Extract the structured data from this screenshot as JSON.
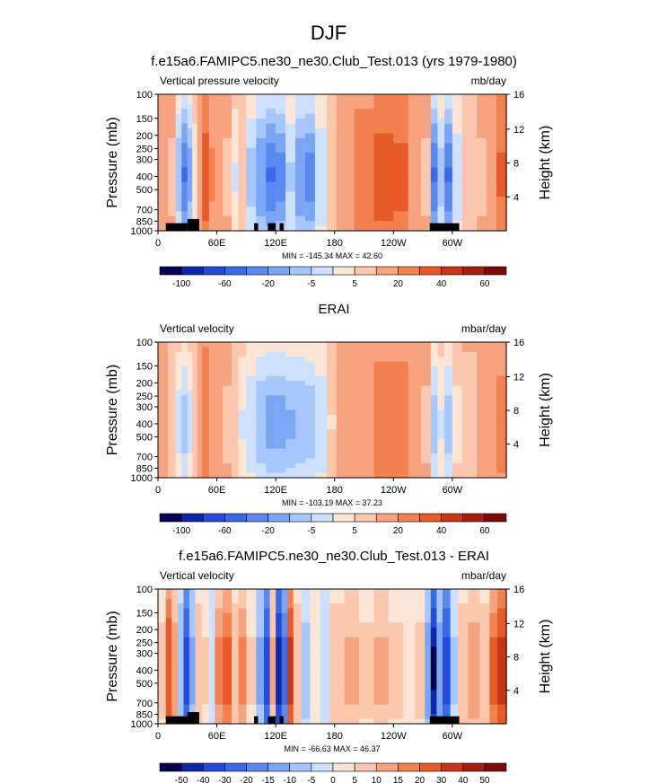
{
  "page": {
    "title": "DJF",
    "colors": {
      "text": "#000000",
      "background": "#ffffff",
      "terrain": "#000000"
    }
  },
  "chart_data": [
    {
      "type": "heatmap",
      "title": "f.e15a6.FAMIPC5.ne30_ne30.Club_Test.013 (yrs 1979-1980)",
      "left_label": "Vertical pressure velocity",
      "units": "mb/day",
      "ylabel": "Pressure (mb)",
      "ylabel_right": "Height (km)",
      "x_ticks": [
        "0",
        "60E",
        "120E",
        "180",
        "120W",
        "60W"
      ],
      "y_ticks": [
        "100",
        "150",
        "200",
        "250",
        "300",
        "400",
        "500",
        "700",
        "850",
        "1000"
      ],
      "height_ticks": [
        "4",
        "8",
        "12",
        "16"
      ],
      "y_log_scale": true,
      "ylim": [
        1000,
        100
      ],
      "xlim": [
        0,
        355
      ],
      "min_max_text": "MIN = -145.34  MAX =  42.60",
      "colorbar_labels": [
        "-100",
        "-60",
        "-20",
        "-5",
        "5",
        "20",
        "40",
        "60"
      ],
      "colorbar_colors": [
        "#05004f",
        "#0e27a6",
        "#2649d8",
        "#3a6ae8",
        "#5a8af0",
        "#7ba6f5",
        "#a6c7fb",
        "#cce0ff",
        "#fde5d6",
        "#fbc8ae",
        "#f7a37f",
        "#f2814f",
        "#e85a2a",
        "#cc3416",
        "#a51d10",
        "#7a0b09"
      ],
      "field": {
        "columns": [
          {
            "lon": 0,
            "v": 0
          },
          {
            "lon": 10,
            "v": -3
          },
          {
            "lon": 18,
            "v": -38
          },
          {
            "lon": 24,
            "v": -60
          },
          {
            "lon": 30,
            "v": -45
          },
          {
            "lon": 35,
            "v": -18
          },
          {
            "lon": 40,
            "v": 6
          },
          {
            "lon": 45,
            "v": 22
          },
          {
            "lon": 52,
            "v": 8
          },
          {
            "lon": 58,
            "v": 1
          },
          {
            "lon": 66,
            "v": -3
          },
          {
            "lon": 75,
            "v": -22
          },
          {
            "lon": 82,
            "v": -8
          },
          {
            "lon": 90,
            "v": -35
          },
          {
            "lon": 100,
            "v": -50
          },
          {
            "lon": 110,
            "v": -60
          },
          {
            "lon": 120,
            "v": -55
          },
          {
            "lon": 130,
            "v": -32
          },
          {
            "lon": 140,
            "v": -50
          },
          {
            "lon": 150,
            "v": -55
          },
          {
            "lon": 160,
            "v": -30
          },
          {
            "lon": 172,
            "v": -6
          },
          {
            "lon": 182,
            "v": 4
          },
          {
            "lon": 200,
            "v": 14
          },
          {
            "lon": 220,
            "v": 22
          },
          {
            "lon": 240,
            "v": 20
          },
          {
            "lon": 255,
            "v": 6
          },
          {
            "lon": 268,
            "v": -3
          },
          {
            "lon": 278,
            "v": -60
          },
          {
            "lon": 285,
            "v": -35
          },
          {
            "lon": 292,
            "v": -60
          },
          {
            "lon": 300,
            "v": -28
          },
          {
            "lon": 310,
            "v": -10
          },
          {
            "lon": 325,
            "v": -3
          },
          {
            "lon": 335,
            "v": 4
          },
          {
            "lon": 345,
            "v": 18
          },
          {
            "lon": 355,
            "v": 10
          }
        ]
      }
    },
    {
      "type": "heatmap",
      "title": "ERAI",
      "left_label": "Vertical velocity",
      "units": "mbar/day",
      "ylabel": "Pressure (mb)",
      "ylabel_right": "Height (km)",
      "x_ticks": [
        "0",
        "60E",
        "120E",
        "180",
        "120W",
        "60W"
      ],
      "y_ticks": [
        "100",
        "150",
        "200",
        "250",
        "300",
        "400",
        "500",
        "700",
        "850",
        "1000"
      ],
      "height_ticks": [
        "4",
        "8",
        "12",
        "16"
      ],
      "y_log_scale": true,
      "ylim": [
        1000,
        100
      ],
      "xlim": [
        0,
        355
      ],
      "min_max_text": "MIN = -103.19  MAX =  37.23",
      "colorbar_labels": [
        "-100",
        "-60",
        "-20",
        "-5",
        "5",
        "20",
        "40",
        "60"
      ],
      "colorbar_colors": [
        "#05004f",
        "#0e27a6",
        "#2649d8",
        "#3a6ae8",
        "#5a8af0",
        "#7ba6f5",
        "#a6c7fb",
        "#cce0ff",
        "#fde5d6",
        "#fbc8ae",
        "#f7a37f",
        "#f2814f",
        "#e85a2a",
        "#cc3416",
        "#a51d10",
        "#7a0b09"
      ],
      "field": {
        "columns": [
          {
            "lon": 0,
            "v": -2
          },
          {
            "lon": 10,
            "v": -8
          },
          {
            "lon": 18,
            "v": -25
          },
          {
            "lon": 24,
            "v": -35
          },
          {
            "lon": 30,
            "v": -25
          },
          {
            "lon": 35,
            "v": -8
          },
          {
            "lon": 40,
            "v": 5
          },
          {
            "lon": 45,
            "v": 16
          },
          {
            "lon": 52,
            "v": 5
          },
          {
            "lon": 58,
            "v": -1
          },
          {
            "lon": 66,
            "v": -3
          },
          {
            "lon": 75,
            "v": -10
          },
          {
            "lon": 82,
            "v": -22
          },
          {
            "lon": 90,
            "v": -30
          },
          {
            "lon": 100,
            "v": -40
          },
          {
            "lon": 110,
            "v": -45
          },
          {
            "lon": 120,
            "v": -45
          },
          {
            "lon": 130,
            "v": -42
          },
          {
            "lon": 140,
            "v": -40
          },
          {
            "lon": 150,
            "v": -38
          },
          {
            "lon": 160,
            "v": -30
          },
          {
            "lon": 172,
            "v": -12
          },
          {
            "lon": 182,
            "v": 3
          },
          {
            "lon": 200,
            "v": 6
          },
          {
            "lon": 220,
            "v": 12
          },
          {
            "lon": 240,
            "v": 12
          },
          {
            "lon": 255,
            "v": 5
          },
          {
            "lon": 268,
            "v": -3
          },
          {
            "lon": 278,
            "v": -35
          },
          {
            "lon": 285,
            "v": -22
          },
          {
            "lon": 292,
            "v": -35
          },
          {
            "lon": 300,
            "v": -15
          },
          {
            "lon": 310,
            "v": -5
          },
          {
            "lon": 325,
            "v": -1
          },
          {
            "lon": 335,
            "v": 3
          },
          {
            "lon": 345,
            "v": 10
          },
          {
            "lon": 355,
            "v": 6
          }
        ]
      }
    },
    {
      "type": "heatmap",
      "title": "f.e15a6.FAMIPC5.ne30_ne30.Club_Test.013 - ERAI",
      "left_label": "Vertical velocity",
      "units": "mbar/day",
      "ylabel": "Pressure (mb)",
      "ylabel_right": "Height (km)",
      "x_ticks": [
        "0",
        "60E",
        "120E",
        "180",
        "120W",
        "60W"
      ],
      "y_ticks": [
        "100",
        "150",
        "200",
        "250",
        "300",
        "400",
        "500",
        "700",
        "850",
        "1000"
      ],
      "height_ticks": [
        "4",
        "8",
        "12",
        "16"
      ],
      "y_log_scale": true,
      "ylim": [
        1000,
        100
      ],
      "xlim": [
        0,
        355
      ],
      "min_max_text": "MIN = -66.63  MAX =  46.37",
      "colorbar_labels": [
        "-50",
        "-40",
        "-30",
        "-20",
        "-15",
        "-10",
        "-5",
        "0",
        "5",
        "10",
        "15",
        "20",
        "30",
        "40",
        "50"
      ],
      "colorbar_colors": [
        "#05004f",
        "#0e27a6",
        "#2649d8",
        "#3a6ae8",
        "#5a8af0",
        "#7ba6f5",
        "#a6c7fb",
        "#cce0ff",
        "#fde5d6",
        "#fbc8ae",
        "#f7a37f",
        "#f2814f",
        "#e85a2a",
        "#cc3416",
        "#a51d10",
        "#7a0b09"
      ],
      "field": {
        "columns": [
          {
            "lon": 0,
            "v": 6
          },
          {
            "lon": 8,
            "v": 25
          },
          {
            "lon": 14,
            "v": 12
          },
          {
            "lon": 20,
            "v": -8
          },
          {
            "lon": 26,
            "v": -30
          },
          {
            "lon": 32,
            "v": -10
          },
          {
            "lon": 38,
            "v": 8
          },
          {
            "lon": 45,
            "v": 5
          },
          {
            "lon": 52,
            "v": -3
          },
          {
            "lon": 58,
            "v": 15
          },
          {
            "lon": 66,
            "v": 20
          },
          {
            "lon": 75,
            "v": 8
          },
          {
            "lon": 82,
            "v": 15
          },
          {
            "lon": 90,
            "v": 5
          },
          {
            "lon": 100,
            "v": -10
          },
          {
            "lon": 108,
            "v": -30
          },
          {
            "lon": 114,
            "v": 10
          },
          {
            "lon": 120,
            "v": -40
          },
          {
            "lon": 126,
            "v": -20
          },
          {
            "lon": 132,
            "v": 30
          },
          {
            "lon": 138,
            "v": 8
          },
          {
            "lon": 146,
            "v": -6
          },
          {
            "lon": 155,
            "v": 4
          },
          {
            "lon": 165,
            "v": -3
          },
          {
            "lon": 175,
            "v": 8
          },
          {
            "lon": 190,
            "v": 10
          },
          {
            "lon": 205,
            "v": 6
          },
          {
            "lon": 220,
            "v": 10
          },
          {
            "lon": 235,
            "v": 6
          },
          {
            "lon": 250,
            "v": 2
          },
          {
            "lon": 262,
            "v": 6
          },
          {
            "lon": 272,
            "v": -12
          },
          {
            "lon": 278,
            "v": -45
          },
          {
            "lon": 284,
            "v": -12
          },
          {
            "lon": 290,
            "v": -30
          },
          {
            "lon": 298,
            "v": -5
          },
          {
            "lon": 306,
            "v": 8
          },
          {
            "lon": 316,
            "v": 12
          },
          {
            "lon": 328,
            "v": 8
          },
          {
            "lon": 338,
            "v": 20
          },
          {
            "lon": 346,
            "v": 30
          },
          {
            "lon": 355,
            "v": 20
          }
        ]
      }
    }
  ]
}
